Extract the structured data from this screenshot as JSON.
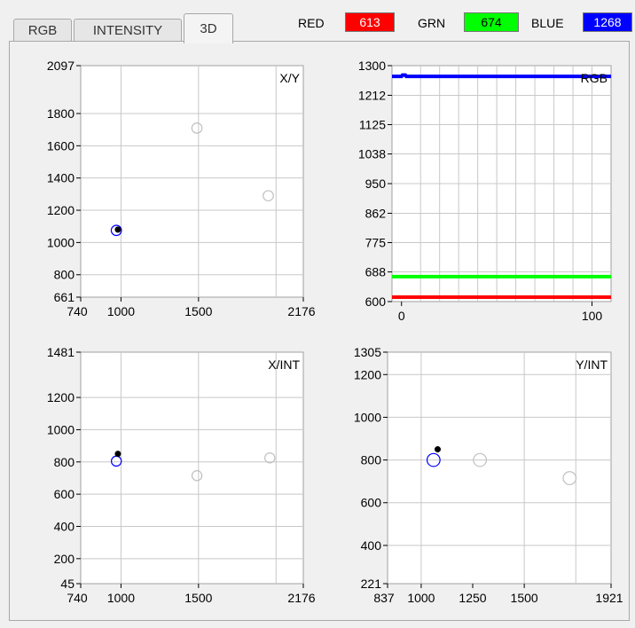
{
  "tabs": [
    {
      "label": "RGB",
      "active": false
    },
    {
      "label": "INTENSITY",
      "active": false
    },
    {
      "label": "3D",
      "active": true
    }
  ],
  "indicators": [
    {
      "label": "RED",
      "value": "613",
      "color": "#ff0000",
      "text_color": "#ffffff"
    },
    {
      "label": "GRN",
      "value": "674",
      "color": "#00ff00",
      "text_color": "#000000"
    },
    {
      "label": "BLUE",
      "value": "1268",
      "color": "#0000ff",
      "text_color": "#ffffff"
    }
  ],
  "chart_data": [
    {
      "type": "scatter",
      "title": "X/Y",
      "xlim": [
        740,
        2176
      ],
      "ylim": [
        661,
        2097
      ],
      "xticks": [
        "740",
        "1000",
        "1500",
        "2176"
      ],
      "yticks": [
        "661",
        "800",
        "1000",
        "1200",
        "1400",
        "1600",
        "1800",
        "2097"
      ],
      "point": {
        "x": 980,
        "y": 1080
      },
      "circles": [
        {
          "x": 970,
          "y": 1075,
          "r": 215,
          "color": "#0000ff"
        },
        {
          "x": 1490,
          "y": 1710,
          "r": 215,
          "color": "#c0c0c0"
        },
        {
          "x": 1950,
          "y": 1290,
          "r": 215,
          "color": "#c0c0c0"
        }
      ]
    },
    {
      "type": "line",
      "title": "RGB",
      "xlim": [
        -5,
        110
      ],
      "ylim": [
        600,
        1300
      ],
      "xticks": [
        "0",
        "100"
      ],
      "yticks": [
        "600",
        "688",
        "775",
        "862",
        "950",
        "1038",
        "1125",
        "1212",
        "1300"
      ],
      "series": [
        {
          "values": [
            613,
            613
          ],
          "x": [
            -5,
            110
          ],
          "color": "#ff0000"
        },
        {
          "values": [
            674,
            674
          ],
          "x": [
            -5,
            110
          ],
          "color": "#00ff00"
        },
        {
          "values": [
            1268,
            1268,
            1272,
            1272,
            1268,
            1268
          ],
          "x": [
            -5,
            0,
            0.5,
            2,
            2.5,
            110
          ],
          "color": "#0000ff"
        }
      ]
    },
    {
      "type": "scatter",
      "title": "X/INT",
      "xlim": [
        740,
        2176
      ],
      "ylim": [
        45,
        1481
      ],
      "xticks": [
        "740",
        "1000",
        "1500",
        "2176"
      ],
      "yticks": [
        "45",
        "200",
        "400",
        "600",
        "800",
        "1000",
        "1200",
        "1481"
      ],
      "point": {
        "x": 980,
        "y": 850
      },
      "circles": [
        {
          "x": 970,
          "y": 805,
          "r": 210,
          "color": "#0000ff"
        },
        {
          "x": 1490,
          "y": 715,
          "r": 210,
          "color": "#c0c0c0"
        },
        {
          "x": 1960,
          "y": 825,
          "r": 210,
          "color": "#c0c0c0"
        }
      ]
    },
    {
      "type": "scatter",
      "title": "Y/INT",
      "xlim": [
        837,
        1921
      ],
      "ylim": [
        221,
        1305
      ],
      "xticks": [
        "837",
        "1000",
        "1250",
        "1500",
        "1921"
      ],
      "yticks": [
        "221",
        "400",
        "600",
        "800",
        "1000",
        "1200",
        "1305"
      ],
      "point": {
        "x": 1080,
        "y": 850
      },
      "circles": [
        {
          "x": 1060,
          "y": 800,
          "r": 205,
          "color": "#0000ff"
        },
        {
          "x": 1285,
          "y": 800,
          "r": 205,
          "color": "#c0c0c0"
        },
        {
          "x": 1720,
          "y": 715,
          "r": 205,
          "color": "#c0c0c0"
        }
      ]
    }
  ]
}
